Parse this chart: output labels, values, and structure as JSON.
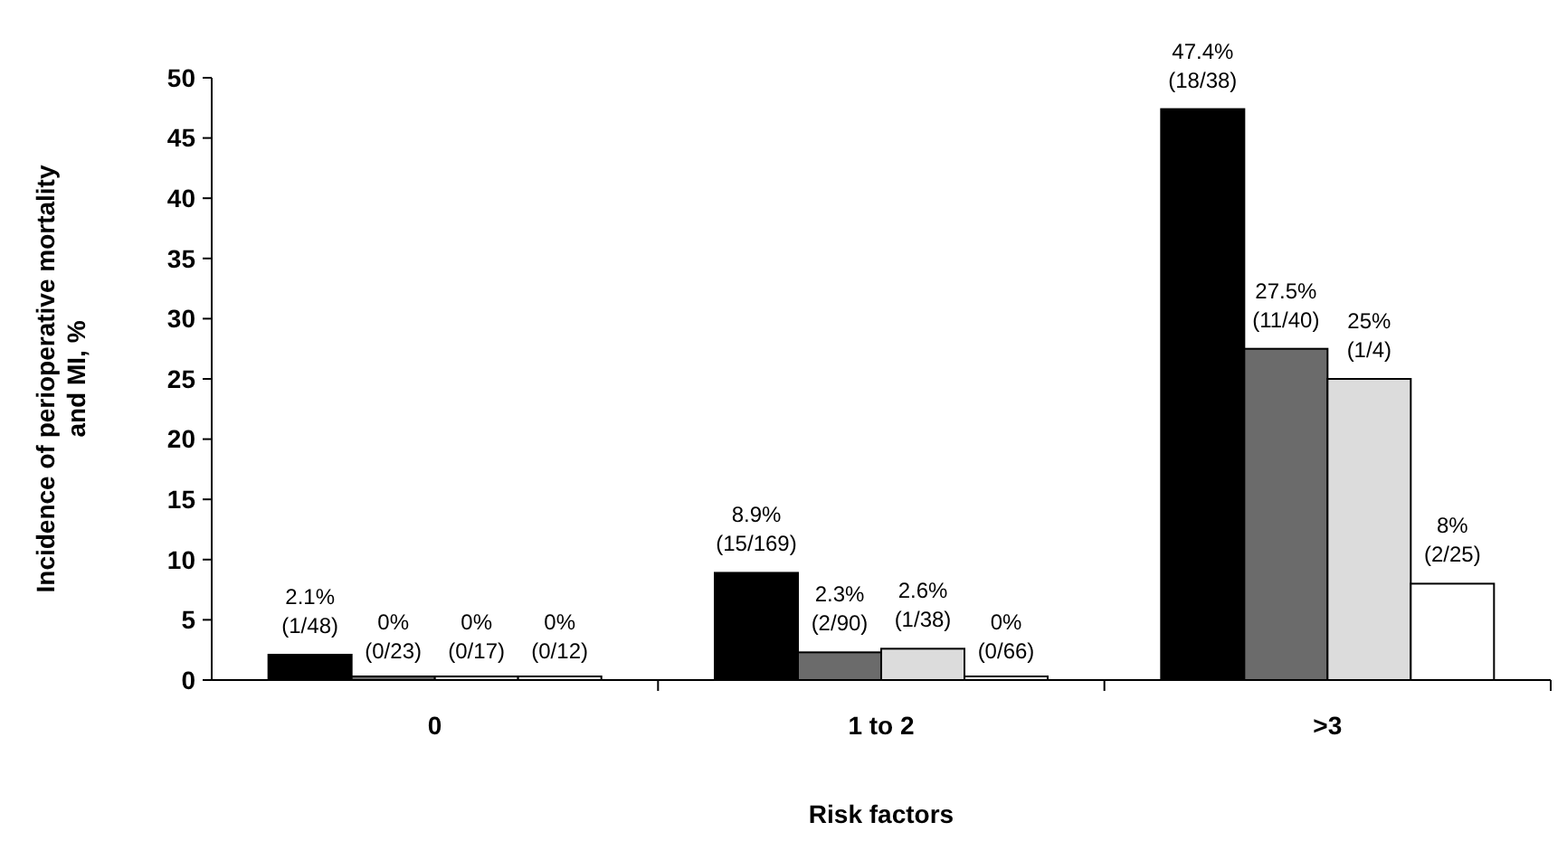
{
  "chart_data": {
    "type": "bar",
    "xlabel": "Risk factors",
    "ylabel": "Incidence of perioperative mortality and MI, %",
    "categories": [
      "0",
      "1 to 2",
      ">3"
    ],
    "series": [
      {
        "color": "#000000",
        "values": [
          2.1,
          8.9,
          47.4
        ],
        "value_labels": [
          "2.1% (1/48)",
          "8.9% (15/169)",
          "47.4% (18/38)"
        ]
      },
      {
        "color": "#6b6b6b",
        "values": [
          0,
          2.3,
          27.5
        ],
        "value_labels": [
          "0% (0/23)",
          "2.3% (2/90)",
          "27.5% (11/40)"
        ]
      },
      {
        "color": "#dcdcdc",
        "values": [
          0,
          2.6,
          25
        ],
        "value_labels": [
          "0% (0/17)",
          "2.6% (1/38)",
          "25% (1/4)"
        ]
      },
      {
        "color": "#ffffff",
        "values": [
          0,
          0,
          8
        ],
        "value_labels": [
          "0% (0/12)",
          "0% (0/66)",
          "8% (2/25)"
        ]
      }
    ],
    "ylim": [
      0,
      50
    ],
    "yticks": [
      0,
      5,
      10,
      15,
      20,
      25,
      30,
      35,
      40,
      45,
      50
    ],
    "grid": false
  }
}
